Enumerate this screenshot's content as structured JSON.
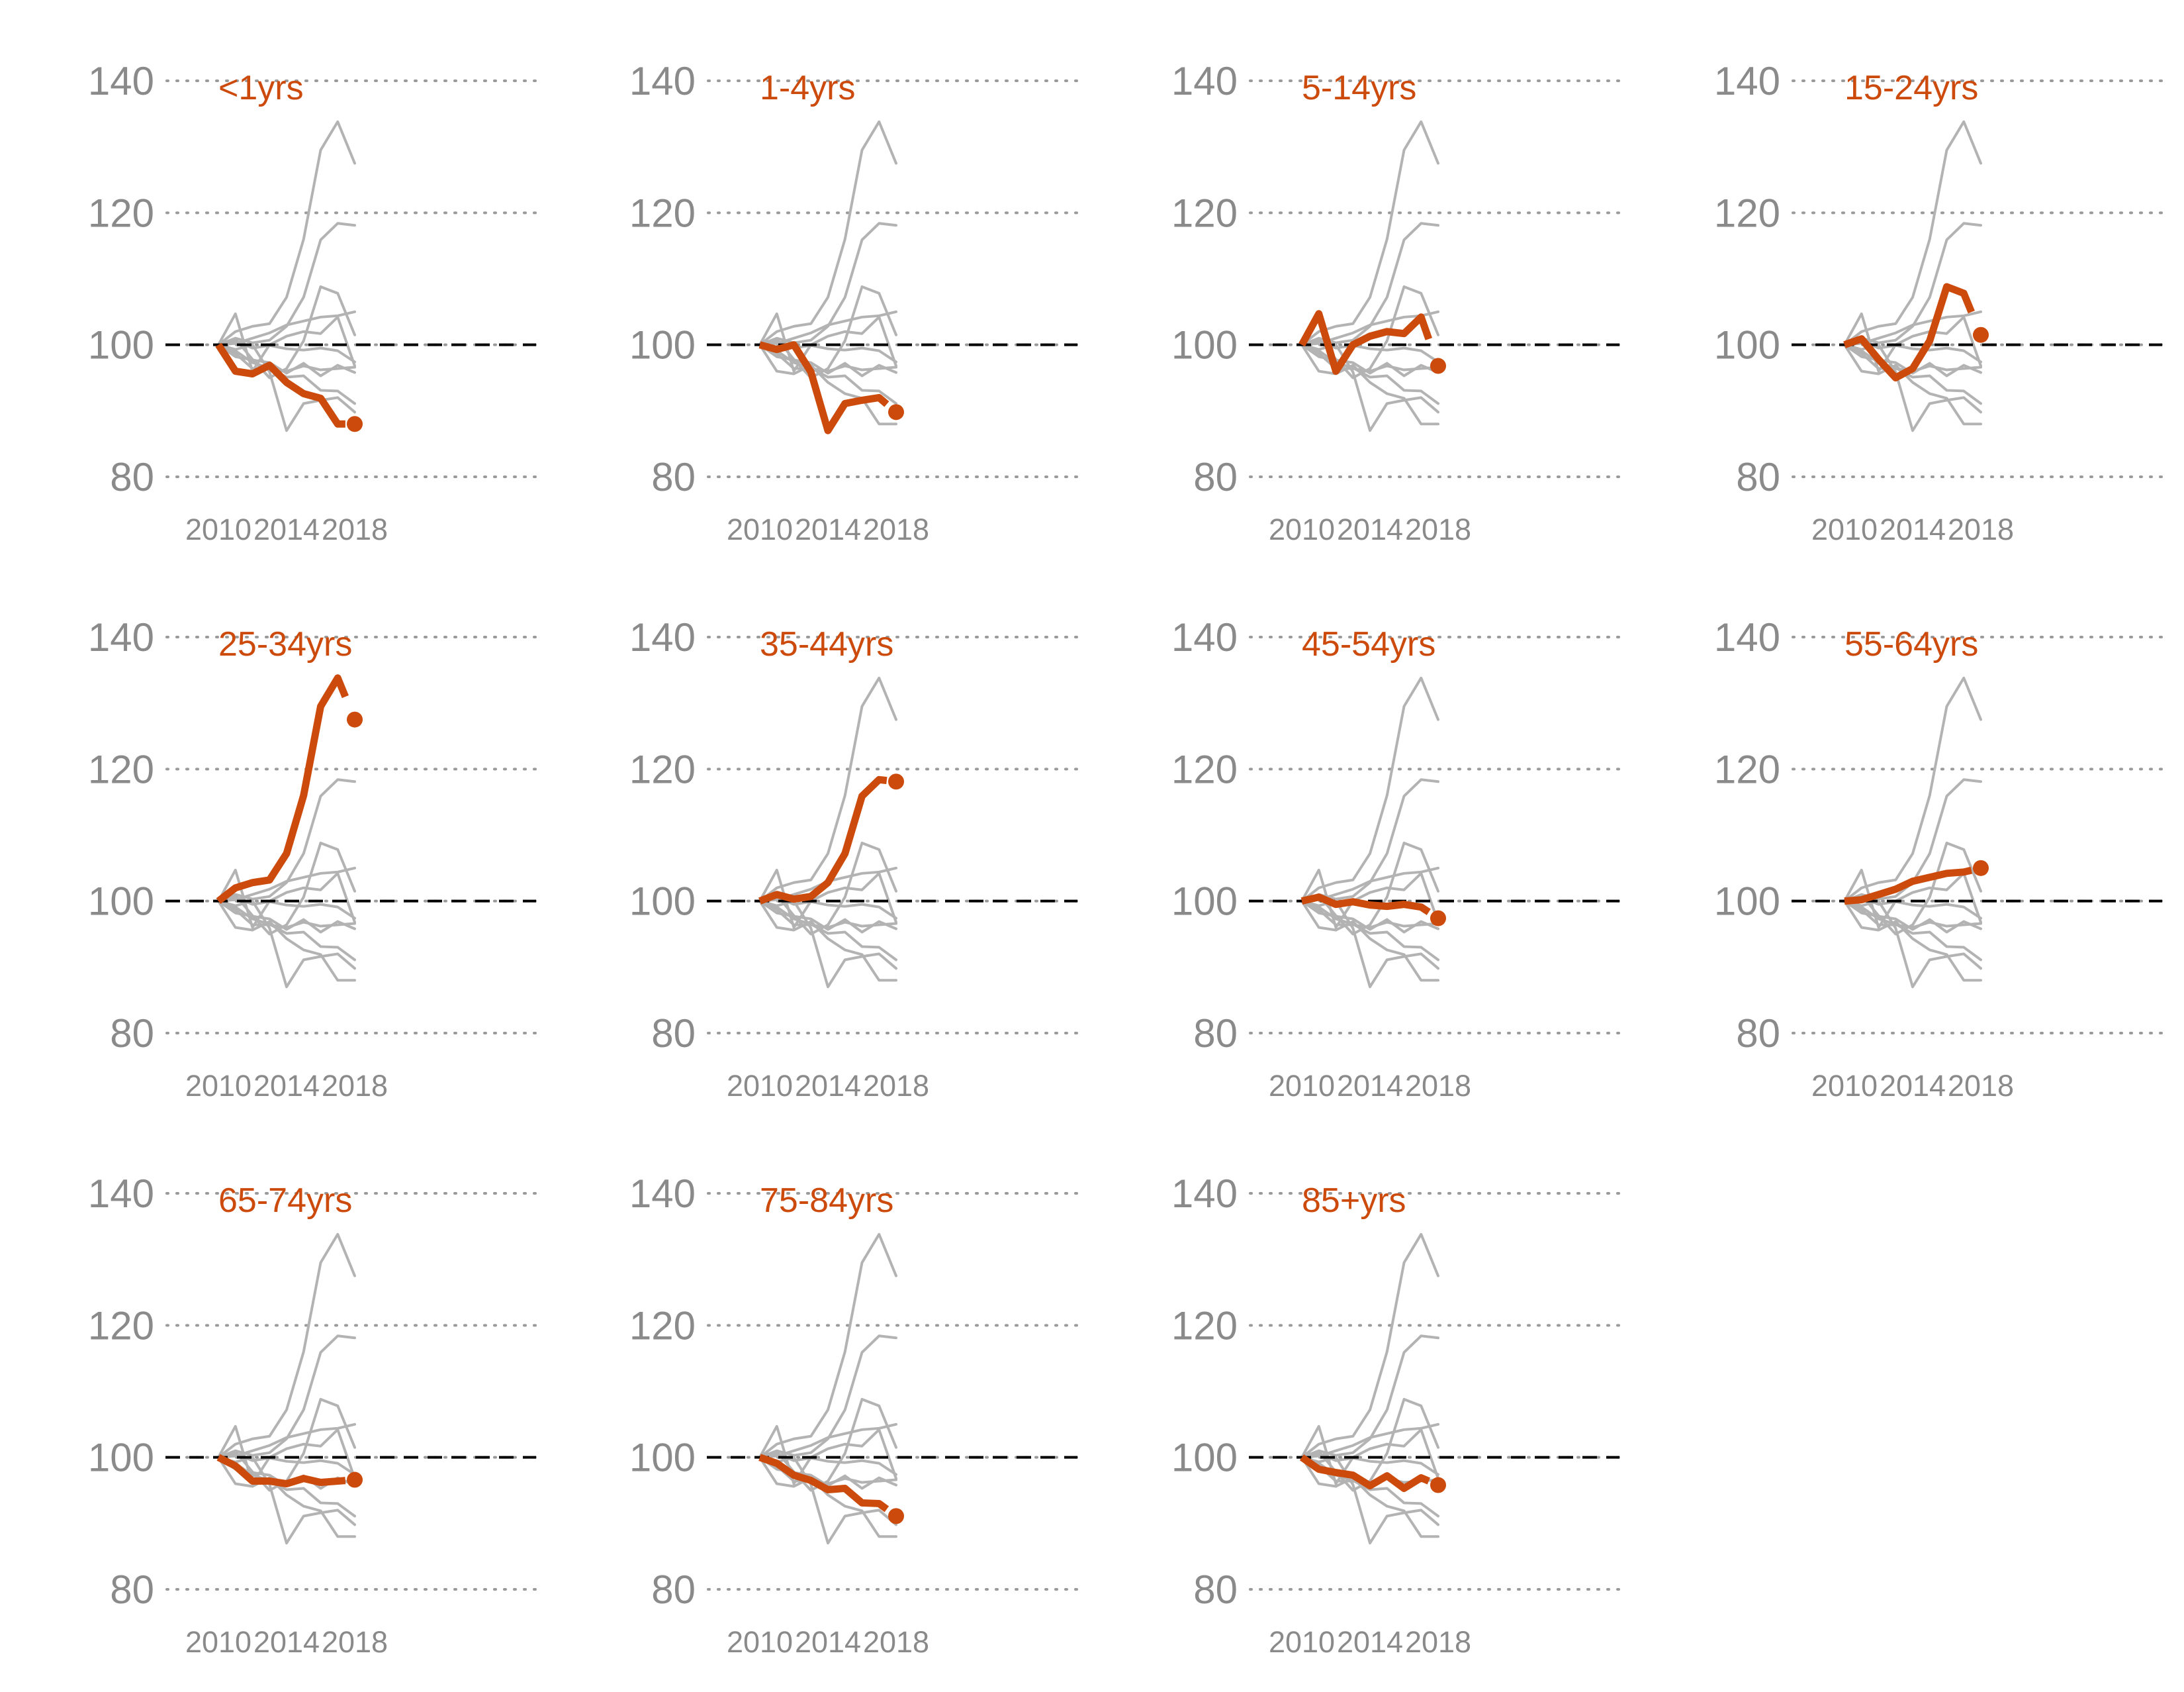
{
  "chart_data": {
    "type": "line",
    "layout": "small-multiples",
    "x": [
      2010,
      2011,
      2012,
      2013,
      2014,
      2015,
      2016,
      2017,
      2018
    ],
    "xticks": [
      "2010",
      "2014",
      "2018"
    ],
    "yticks": [
      "80",
      "100",
      "120",
      "140"
    ],
    "ylim": [
      80,
      140
    ],
    "reference_line": 100,
    "grid": "dotted horizontal",
    "colors": {
      "highlight": "#cc4a0c",
      "background_lines": "#b3b3b3",
      "reference": "#000000",
      "grid": "#9a9a9a",
      "tick_text": "#8a8a8a"
    },
    "series": [
      {
        "name": "<1yrs",
        "values": [
          100,
          96.0,
          95.6,
          96.9,
          94.3,
          92.6,
          91.9,
          88.0,
          88.0
        ]
      },
      {
        "name": "1-4yrs",
        "values": [
          100,
          99.3,
          100.0,
          95.9,
          87.0,
          91.1,
          91.6,
          92.0,
          89.8
        ]
      },
      {
        "name": "5-14yrs",
        "values": [
          100,
          104.7,
          96.0,
          100.0,
          101.3,
          102.0,
          101.7,
          104.2,
          96.8
        ]
      },
      {
        "name": "15-24yrs",
        "values": [
          100,
          100.9,
          97.8,
          95.0,
          96.4,
          100.6,
          108.8,
          107.8,
          101.5
        ]
      },
      {
        "name": "25-34yrs",
        "values": [
          100,
          102.0,
          102.8,
          103.2,
          107.2,
          116.0,
          129.5,
          133.8,
          127.5
        ]
      },
      {
        "name": "35-44yrs",
        "values": [
          100,
          101.0,
          100.3,
          100.7,
          102.8,
          107.2,
          115.9,
          118.4,
          118.1
        ]
      },
      {
        "name": "45-54yrs",
        "values": [
          100,
          100.6,
          99.5,
          99.9,
          99.4,
          99.2,
          99.5,
          99.1,
          97.4
        ]
      },
      {
        "name": "55-64yrs",
        "values": [
          100,
          100.2,
          101.0,
          101.8,
          103.0,
          103.6,
          104.2,
          104.4,
          105.0
        ]
      },
      {
        "name": "65-74yrs",
        "values": [
          100,
          98.7,
          96.4,
          96.4,
          96.0,
          96.8,
          96.2,
          96.4,
          96.6
        ]
      },
      {
        "name": "75-84yrs",
        "values": [
          100,
          99.1,
          97.3,
          96.5,
          95.1,
          95.3,
          93.1,
          93.0,
          91.1
        ]
      },
      {
        "name": "85+yrs",
        "values": [
          100,
          98.2,
          97.7,
          97.3,
          95.7,
          97.2,
          95.3,
          96.9,
          95.8
        ]
      }
    ]
  }
}
